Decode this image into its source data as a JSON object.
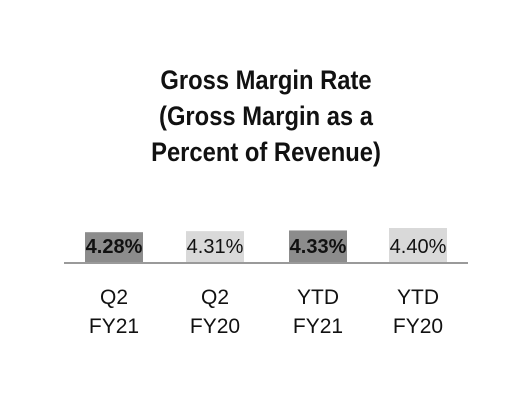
{
  "chart_data": {
    "type": "bar",
    "title_lines": [
      "Gross Margin Rate",
      "(Gross Margin as a",
      "Percent of Revenue)"
    ],
    "categories": [
      {
        "line1": "Q2",
        "line2": "FY21"
      },
      {
        "line1": "Q2",
        "line2": "FY20"
      },
      {
        "line1": "YTD",
        "line2": "FY21"
      },
      {
        "line1": "YTD",
        "line2": "FY20"
      }
    ],
    "values": [
      4.28,
      4.31,
      4.33,
      4.4
    ],
    "value_labels": [
      "4.28%",
      "4.31%",
      "4.33%",
      "4.40%"
    ],
    "unit": "%",
    "bar_colors": [
      "#8c8c8c",
      "#d9d9d9",
      "#8c8c8c",
      "#d9d9d9"
    ],
    "label_bold": [
      true,
      false,
      true,
      false
    ],
    "ylim": [
      4.2,
      4.4
    ],
    "grid": false,
    "legend": "none"
  }
}
